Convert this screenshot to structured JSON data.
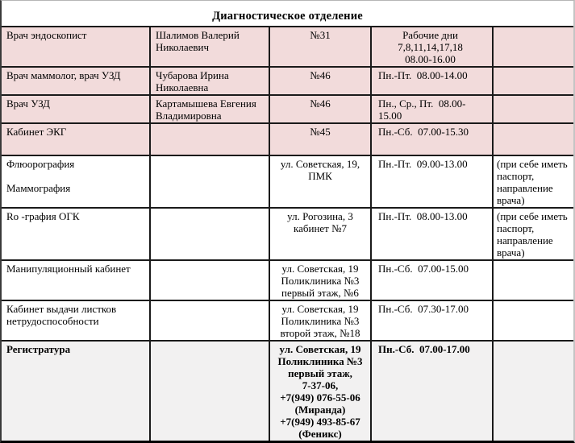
{
  "title": "Диагностическое отделение",
  "colors": {
    "row_highlight_pink": "#f2dbdb",
    "row_plain_white": "#ffffff",
    "row_registry_gray": "#f2f1f1",
    "grid_border": "#1a1a1a"
  },
  "table": {
    "rows": [
      {
        "shade": "pink",
        "bold": false,
        "service": "Врач эндоскопист",
        "person": "Шалимов Валерий Николаевич",
        "room": "№31",
        "hours": "Рабочие дни\n7,8,11,14,17,18\n08.00-16.00",
        "note": ""
      },
      {
        "shade": "pink",
        "bold": false,
        "service": "Врач маммолог, врач УЗД",
        "person": "Чубарова Ирина Николаевна",
        "room": "№46",
        "hours": "Пн.-Пт.  08.00-14.00",
        "note": ""
      },
      {
        "shade": "pink",
        "bold": false,
        "service": "Врач УЗД",
        "person": "Картамышева Евгения Владимировна",
        "room": "№46",
        "hours": "Пн., Ср., Пт.  08.00-15.00",
        "note": ""
      },
      {
        "shade": "pink",
        "bold": false,
        "service": "Кабинет ЭКГ",
        "person": "",
        "room": "№45",
        "hours": "Пн.-Сб.  07.00-15.30",
        "note": ""
      },
      {
        "shade": "white",
        "bold": false,
        "service": "Флюорография\n\nМаммография",
        "person": "",
        "room": "ул. Советская, 19,\nПМК",
        "hours": "Пн.-Пт.  09.00-13.00",
        "note": "(при себе иметь\nпаспорт,\nнаправление\nврача)"
      },
      {
        "shade": "white",
        "bold": false,
        "service": "Ro -графия ОГК",
        "person": "",
        "room": "ул. Рогозина, 3\nкабинет №7",
        "hours": "Пн.-Пт.  08.00-13.00",
        "note": "(при себе иметь\nпаспорт,\nнаправление\nврача)"
      },
      {
        "shade": "white",
        "bold": false,
        "service": "Манипуляционный кабинет",
        "person": "",
        "room": "ул. Советская, 19\nПоликлиника №3\nпервый этаж, №6",
        "hours": "Пн.-Сб.  07.00-15.00",
        "note": ""
      },
      {
        "shade": "white",
        "bold": false,
        "service": "Кабинет выдачи листков\nнетрудоспособности",
        "person": "",
        "room": "ул. Советская, 19\nПоликлиника №3\nвторой этаж, №18",
        "hours": "Пн.-Сб.  07.30-17.00",
        "note": ""
      },
      {
        "shade": "gray",
        "bold": true,
        "service": "Регистратура",
        "person": "",
        "room": "ул. Советская, 19\nПоликлиника №3\nпервый этаж,\n7-37-06,\n+7(949) 076-55-06\n(Миранда)\n+7(949) 493-85-67\n(Феникс)",
        "hours": "Пн.-Сб.  07.00-17.00",
        "note": ""
      }
    ]
  }
}
